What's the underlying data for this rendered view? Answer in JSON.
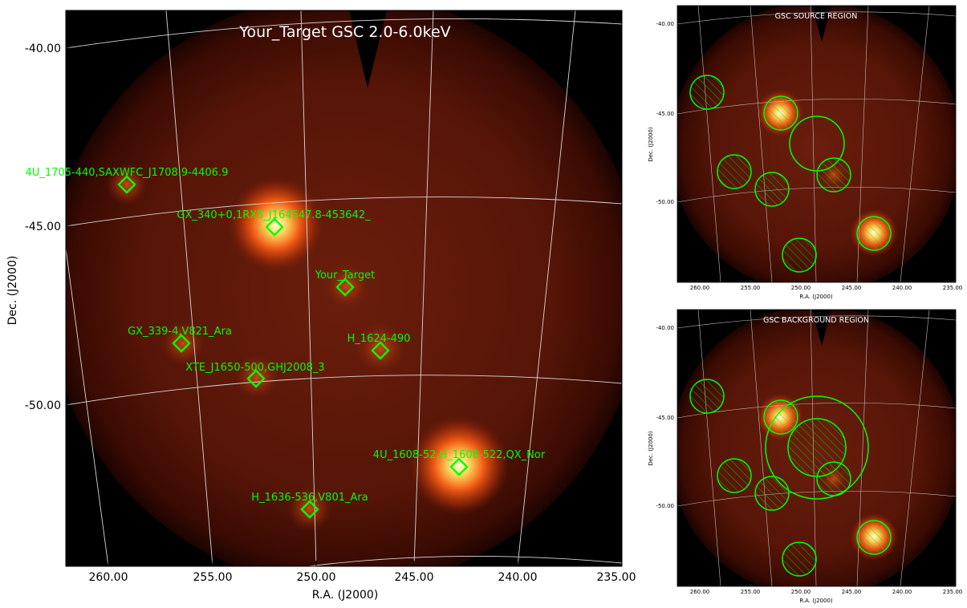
{
  "main": {
    "title": "Your_Target GSC 2.0-6.0keV",
    "xlabel": "R.A. (J2000)",
    "ylabel": "Dec. (J2000)",
    "ra_ticks": [
      "260.00",
      "255.00",
      "250.00",
      "245.00",
      "240.00",
      "235.00"
    ],
    "dec_ticks": [
      "-40.00",
      "-45.00",
      "-50.00"
    ],
    "sources": [
      {
        "label": "4U_1705-440,SAXWFC_J1708.9-4406.9"
      },
      {
        "label": "GX_340+0,1RXS_J164547.8-453642_"
      },
      {
        "label": "Your_Target"
      },
      {
        "label": "GX_339-4,V821_Ara"
      },
      {
        "label": "H_1624-490"
      },
      {
        "label": "XTE_J1650-500,GHJ2008_3"
      },
      {
        "label": "4U_1608-52,H_1608-522,QX_Nor"
      },
      {
        "label": "H_1636-536,V801_Ara"
      }
    ],
    "colors": {
      "marker": "#00ff00",
      "grid": "#d8d8d8"
    }
  },
  "panels": [
    {
      "title": "GSC SOURCE REGION",
      "xlabel": "R.A. (J2000)",
      "ylabel": "Dec. (J2000)",
      "ra_ticks": [
        "260.00",
        "255.00",
        "250.00",
        "245.00",
        "240.00",
        "235.00"
      ],
      "dec_ticks": [
        "-40.00",
        "-45.00",
        "-50.00"
      ]
    },
    {
      "title": "GSC BACKGROUND REGION",
      "xlabel": "R.A. (J2000)",
      "ylabel": "Dec. (J2000)",
      "ra_ticks": [
        "260.00",
        "255.00",
        "250.00",
        "245.00",
        "240.00",
        "235.00"
      ],
      "dec_ticks": [
        "-40.00",
        "-45.00",
        "-50.00"
      ]
    }
  ]
}
